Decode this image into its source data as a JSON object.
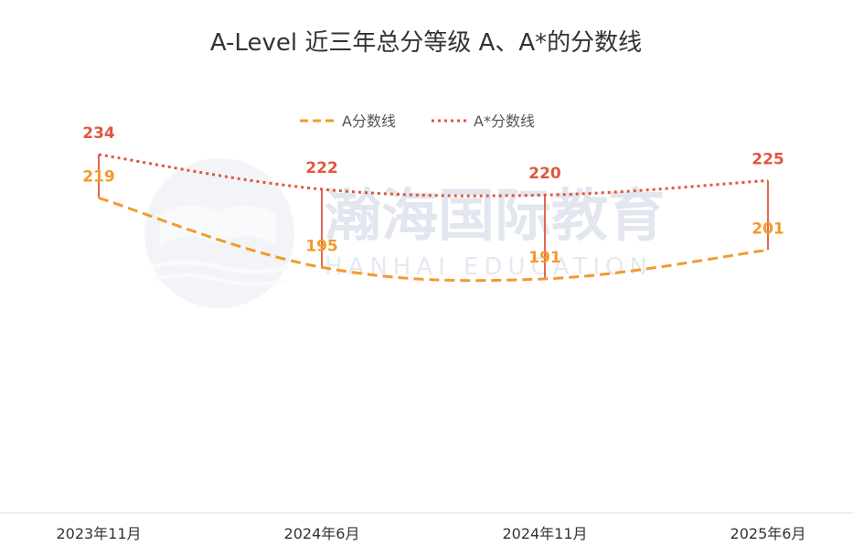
{
  "chart_data": {
    "type": "line",
    "title": "A-Level 近三年总分等级 A、A*的分数线",
    "categories": [
      "2023年11月",
      "2024年6月",
      "2024年11月",
      "2025年6月"
    ],
    "series": [
      {
        "name": "A分数线",
        "values": [
          219,
          195,
          191,
          201
        ],
        "color": "#f39a2b",
        "line_style": "dashed"
      },
      {
        "name": "A*分数线",
        "values": [
          234,
          222,
          220,
          225
        ],
        "color": "#e0573f",
        "line_style": "dotted"
      }
    ],
    "xlabel": "",
    "ylabel": "",
    "ylim": [
      110,
      240
    ],
    "grid": false,
    "legend_position": "top-center",
    "data_labels": true
  },
  "watermark": {
    "brand_cn": "瀚海国际教育",
    "brand_en": "HANHAI EDUCATION"
  }
}
